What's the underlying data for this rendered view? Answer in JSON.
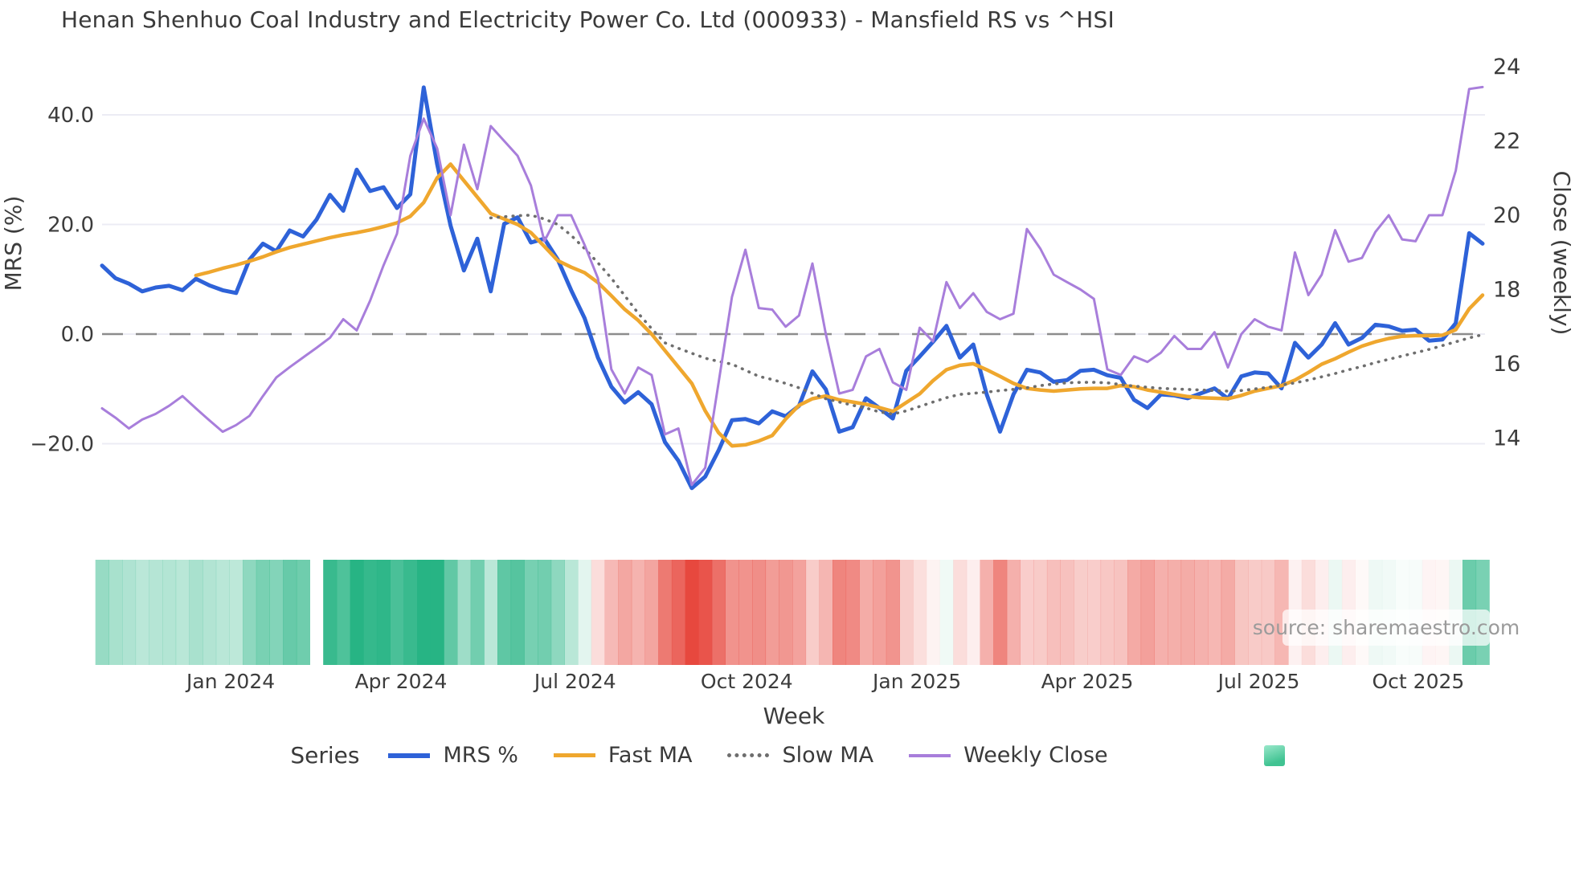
{
  "header": {
    "title": "Henan Shenhuo Coal Industry and Electricity Power Co. Ltd (000933) - Mansfield RS vs ^HSI"
  },
  "source_note": "source: sharemaestro.com",
  "chart_data": {
    "type": "line",
    "title": "Henan Shenhuo Coal Industry and Electricity Power Co. Ltd (000933) - Mansfield RS vs ^HSI",
    "xlabel": "Week",
    "ylabel_left": "MRS (%)",
    "ylabel_right": "Close (weekly)",
    "grid": true,
    "legend_position": "bottom",
    "legend_title": "Series",
    "x_tick_labels": [
      "Jan 2024",
      "Apr 2024",
      "Jul 2024",
      "Oct 2024",
      "Jan 2025",
      "Apr 2025",
      "Jul 2025",
      "Oct 2025"
    ],
    "x_tick_positions": [
      9.6,
      22.3,
      35.3,
      48.1,
      60.8,
      73.5,
      86.3,
      98.2
    ],
    "y_left_ticks": [
      {
        "value": 40,
        "label": "40.0"
      },
      {
        "value": 20,
        "label": "20.0"
      },
      {
        "value": 0,
        "label": "0.0"
      },
      {
        "value": -20,
        "label": "−20.0"
      }
    ],
    "y_right_ticks": [
      {
        "value": 24,
        "label": "24"
      },
      {
        "value": 22,
        "label": "22"
      },
      {
        "value": 20,
        "label": "20"
      },
      {
        "value": 18,
        "label": "18"
      },
      {
        "value": 16,
        "label": "16"
      },
      {
        "value": 14,
        "label": "14"
      }
    ],
    "y_left_range": [
      -31,
      47.5
    ],
    "y_right_range": [
      13.4,
      24.7
    ],
    "zero_line_left": 0,
    "series": [
      {
        "name": "MRS %",
        "axis": "left",
        "color": "#2e62d8",
        "style": "solid",
        "width": 5,
        "values": [
          12.5,
          10.2,
          9.2,
          7.8,
          8.5,
          8.8,
          8.0,
          10.1,
          8.9,
          8.0,
          7.5,
          13.6,
          16.5,
          15.1,
          18.9,
          17.8,
          20.9,
          25.4,
          22.5,
          30.0,
          26.1,
          26.8,
          23.0,
          25.5,
          45.0,
          31.0,
          19.8,
          11.6,
          17.4,
          7.8,
          20.1,
          21.3,
          16.7,
          17.4,
          13.6,
          8.0,
          2.9,
          -4.3,
          -9.6,
          -12.5,
          -10.6,
          -12.8,
          -19.7,
          -23.1,
          -28.1,
          -26.0,
          -21.2,
          -15.7,
          -15.5,
          -16.3,
          -14.1,
          -15.0,
          -13.1,
          -6.8,
          -10.1,
          -17.8,
          -17.0,
          -11.7,
          -13.5,
          -15.4,
          -6.7,
          -4.1,
          -1.4,
          1.5,
          -4.3,
          -1.9,
          -11.0,
          -17.8,
          -11.0,
          -6.5,
          -7.0,
          -8.7,
          -8.4,
          -6.7,
          -6.5,
          -7.5,
          -8.0,
          -12.0,
          -13.5,
          -11.0,
          -11.2,
          -11.7,
          -10.8,
          -9.9,
          -11.8,
          -7.7,
          -7.0,
          -7.2,
          -9.9,
          -1.6,
          -4.3,
          -1.9,
          2.0,
          -1.9,
          -0.7,
          1.7,
          1.4,
          0.6,
          0.8,
          -1.2,
          -1.0,
          2.0,
          18.4,
          16.5
        ]
      },
      {
        "name": "Fast MA",
        "axis": "left",
        "color": "#efa72e",
        "style": "solid",
        "width": 4.5,
        "values": [
          null,
          null,
          null,
          null,
          null,
          null,
          null,
          10.7,
          11.3,
          12.0,
          12.6,
          13.3,
          14.1,
          15.0,
          15.8,
          16.4,
          17.0,
          17.6,
          18.1,
          18.5,
          19.0,
          19.6,
          20.3,
          21.5,
          24.0,
          28.5,
          31.0,
          28.0,
          25.0,
          22.0,
          21.0,
          20.0,
          18.5,
          16.0,
          13.4,
          12.2,
          11.2,
          9.4,
          7.0,
          4.5,
          2.5,
          0.0,
          -3.0,
          -6.0,
          -9.0,
          -14.0,
          -18.0,
          -20.4,
          -20.2,
          -19.5,
          -18.5,
          -15.5,
          -13.0,
          -11.8,
          -11.3,
          -12.0,
          -12.4,
          -12.8,
          -13.4,
          -14.1,
          -12.5,
          -10.9,
          -8.5,
          -6.5,
          -5.7,
          -5.4,
          -6.5,
          -7.7,
          -9.0,
          -9.9,
          -10.2,
          -10.4,
          -10.2,
          -10.0,
          -9.9,
          -9.9,
          -9.4,
          -9.6,
          -10.2,
          -10.6,
          -11.0,
          -11.4,
          -11.6,
          -11.7,
          -11.8,
          -11.2,
          -10.4,
          -9.9,
          -9.4,
          -8.4,
          -7.0,
          -5.5,
          -4.5,
          -3.3,
          -2.2,
          -1.4,
          -0.8,
          -0.4,
          -0.3,
          -0.3,
          -0.2,
          0.8,
          4.6,
          7.1
        ]
      },
      {
        "name": "Slow MA",
        "axis": "left",
        "color": "#6e6e6e",
        "style": "dotted",
        "width": 3.6,
        "values": [
          null,
          null,
          null,
          null,
          null,
          null,
          null,
          null,
          null,
          null,
          null,
          null,
          null,
          null,
          null,
          null,
          null,
          null,
          null,
          null,
          null,
          null,
          null,
          null,
          null,
          null,
          null,
          null,
          null,
          21.2,
          21.4,
          21.6,
          21.7,
          21.0,
          20.0,
          18.0,
          15.6,
          13.0,
          10.2,
          7.0,
          3.8,
          1.0,
          -1.6,
          -2.6,
          -3.5,
          -4.4,
          -5.0,
          -5.5,
          -6.6,
          -7.7,
          -8.3,
          -9.0,
          -9.8,
          -10.8,
          -11.8,
          -12.4,
          -13.0,
          -13.5,
          -14.2,
          -14.6,
          -14.0,
          -13.2,
          -12.4,
          -11.6,
          -11.0,
          -10.8,
          -10.6,
          -10.3,
          -10.1,
          -9.8,
          -9.4,
          -9.1,
          -8.9,
          -8.8,
          -8.8,
          -8.9,
          -9.2,
          -9.5,
          -9.7,
          -9.9,
          -10.0,
          -10.1,
          -10.2,
          -10.3,
          -10.4,
          -10.3,
          -10.0,
          -9.7,
          -9.3,
          -8.9,
          -8.4,
          -7.8,
          -7.2,
          -6.5,
          -5.9,
          -5.2,
          -4.6,
          -4.0,
          -3.4,
          -2.8,
          -2.1,
          -1.4,
          -0.7,
          -0.1
        ]
      },
      {
        "name": "Weekly Close",
        "axis": "right",
        "color": "#a87edb",
        "style": "solid",
        "width": 3,
        "values": [
          14.8,
          14.55,
          14.26,
          14.5,
          14.65,
          14.87,
          15.13,
          14.8,
          14.48,
          14.17,
          14.35,
          14.6,
          15.13,
          15.63,
          15.91,
          16.17,
          16.43,
          16.7,
          17.2,
          16.9,
          17.7,
          18.65,
          19.5,
          21.6,
          22.6,
          21.8,
          20.0,
          21.9,
          20.7,
          22.4,
          22.0,
          21.6,
          20.8,
          19.3,
          20.0,
          20.0,
          19.2,
          18.3,
          15.85,
          15.2,
          15.9,
          15.7,
          14.1,
          14.26,
          12.74,
          13.2,
          15.5,
          17.8,
          19.07,
          17.5,
          17.46,
          17.0,
          17.3,
          18.7,
          16.8,
          15.2,
          15.3,
          16.2,
          16.4,
          15.5,
          15.3,
          16.97,
          16.6,
          18.2,
          17.5,
          17.9,
          17.4,
          17.2,
          17.35,
          19.63,
          19.1,
          18.4,
          18.2,
          18.0,
          17.75,
          15.85,
          15.7,
          16.2,
          16.05,
          16.3,
          16.75,
          16.4,
          16.4,
          16.85,
          15.9,
          16.8,
          17.2,
          17.0,
          16.9,
          19.0,
          17.85,
          18.4,
          19.6,
          18.75,
          18.85,
          19.55,
          20.0,
          19.35,
          19.3,
          20.0,
          20.0,
          21.2,
          23.4,
          23.45
        ]
      }
    ],
    "heatmap": {
      "from_series": "MRS %",
      "positive_color_rgb": "39,180,132",
      "negative_color_rgb": "231,72,62",
      "max_abs": 28,
      "gap_index": 16
    }
  }
}
